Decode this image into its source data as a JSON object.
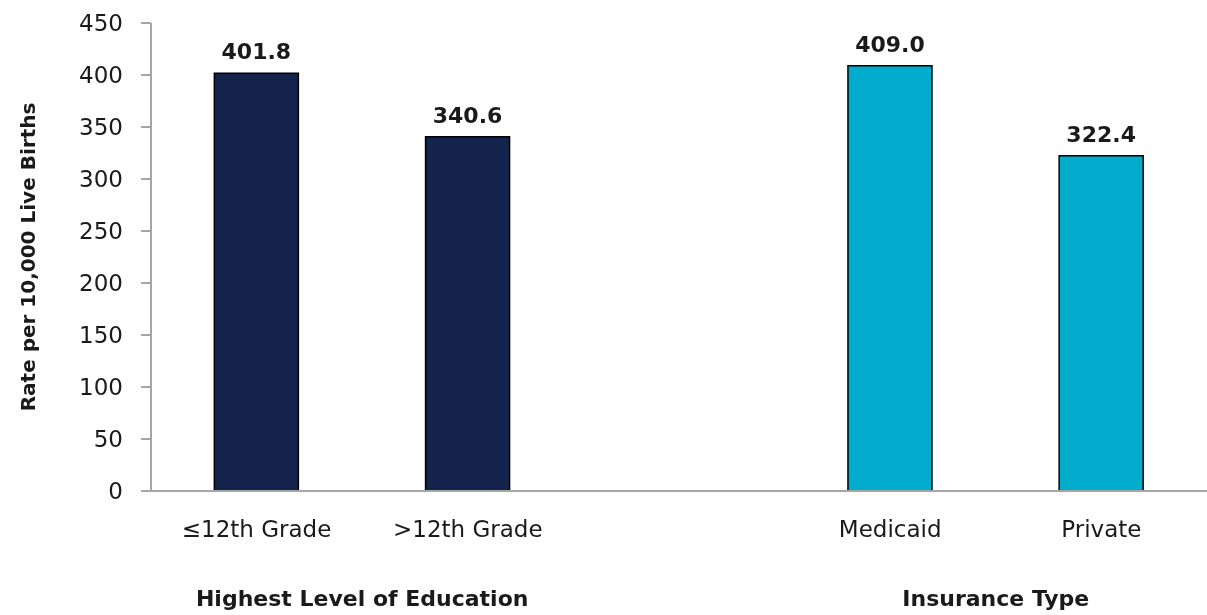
{
  "chart_data": {
    "type": "bar",
    "ylabel": "Rate per 10,000 Live Births",
    "categories": [
      "≤12th Grade",
      ">12th Grade",
      null,
      "Medicaid",
      "Private"
    ],
    "values": [
      401.8,
      340.6,
      null,
      409.0,
      322.4
    ],
    "value_labels": [
      "401.8",
      "340.6",
      null,
      "409.0",
      "322.4"
    ],
    "colors": [
      "#14234b",
      "#14234b",
      null,
      "#00abcb",
      "#00abcb"
    ],
    "ylim": [
      0,
      450
    ],
    "yticks": [
      0,
      50,
      100,
      150,
      200,
      250,
      300,
      350,
      400,
      450
    ],
    "annotations": [
      "Highest Level of Education",
      "Insurance Type"
    ]
  }
}
